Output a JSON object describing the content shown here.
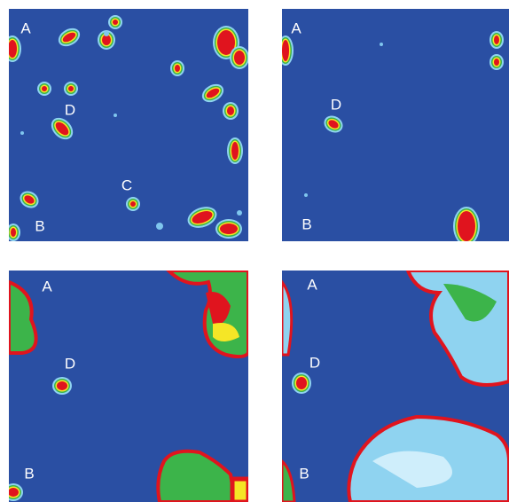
{
  "panels": [
    {
      "labels": [
        "A",
        "D",
        "C",
        "B"
      ]
    },
    {
      "labels": [
        "A",
        "D",
        "B"
      ]
    },
    {
      "labels": [
        "A",
        "D",
        "B"
      ]
    },
    {
      "labels": [
        "A",
        "D",
        "B"
      ]
    }
  ]
}
